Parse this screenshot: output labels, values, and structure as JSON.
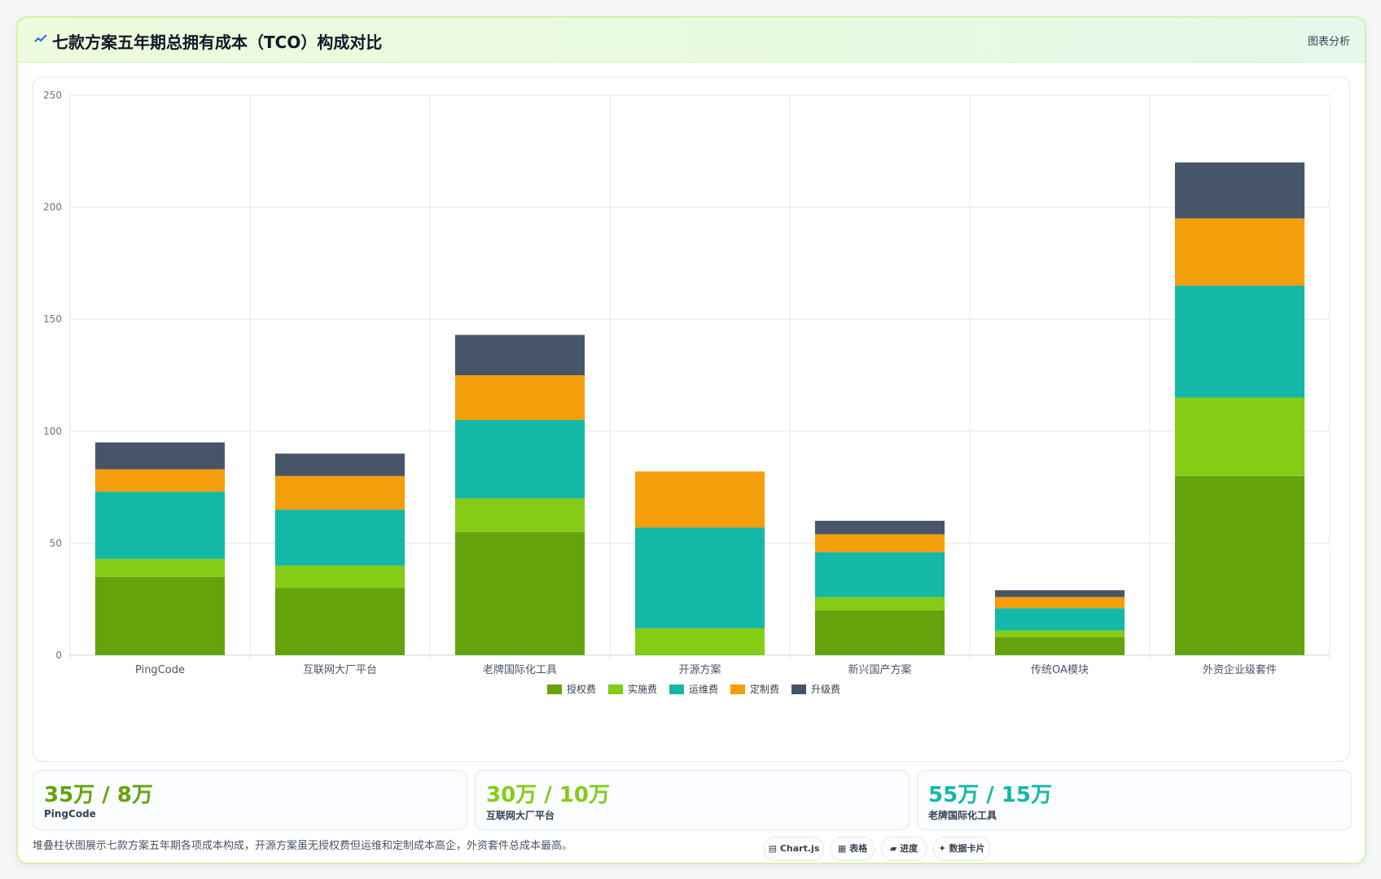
{
  "header": {
    "title": "七款方案五年期总拥有成本（TCO）构成对比",
    "right_link": "图表分析",
    "icon": "chart-line-icon"
  },
  "chart_data": {
    "type": "bar",
    "stacked": true,
    "categories": [
      "PingCode",
      "互联网大厂平台",
      "老牌国际化工具",
      "开源方案",
      "新兴国产方案",
      "传统OA模块",
      "外资企业级套件"
    ],
    "series": [
      {
        "name": "授权费",
        "color": "#65a30d",
        "values": [
          35,
          30,
          55,
          0,
          20,
          8,
          80
        ]
      },
      {
        "name": "实施费",
        "color": "#84cc16",
        "values": [
          8,
          10,
          15,
          12,
          6,
          3,
          35
        ]
      },
      {
        "name": "运维费",
        "color": "#14b8a6",
        "values": [
          30,
          25,
          35,
          45,
          20,
          10,
          50
        ]
      },
      {
        "name": "定制费",
        "color": "#f59e0b",
        "values": [
          10,
          15,
          20,
          25,
          8,
          5,
          30
        ]
      },
      {
        "name": "升级费",
        "color": "#475569",
        "values": [
          12,
          10,
          18,
          0,
          6,
          3,
          25
        ]
      }
    ],
    "ylim": [
      0,
      250
    ],
    "yticks": [
      0,
      50,
      100,
      150,
      200,
      250
    ],
    "grid": true,
    "legend": "bottom"
  },
  "stats": [
    {
      "value": "35万 / 8万",
      "label": "PingCode",
      "color": "#65a30d"
    },
    {
      "value": "30万 / 10万",
      "label": "互联网大厂平台",
      "color": "#84cc16"
    },
    {
      "value": "55万 / 15万",
      "label": "老牌国际化工具",
      "color": "#14b8a6"
    }
  ],
  "footer": {
    "text": "堆叠柱状图展示七款方案五年期各项成本构成，开源方案虽无授权费但运维和定制成本高企，外资套件总成本最高。"
  },
  "pills": [
    {
      "label": "Chart.js",
      "icon": "chart-icon"
    },
    {
      "label": "表格",
      "icon": "table-icon"
    },
    {
      "label": "进度",
      "icon": "progress-icon"
    },
    {
      "label": "数据卡片",
      "icon": "sparkle-icon"
    }
  ]
}
